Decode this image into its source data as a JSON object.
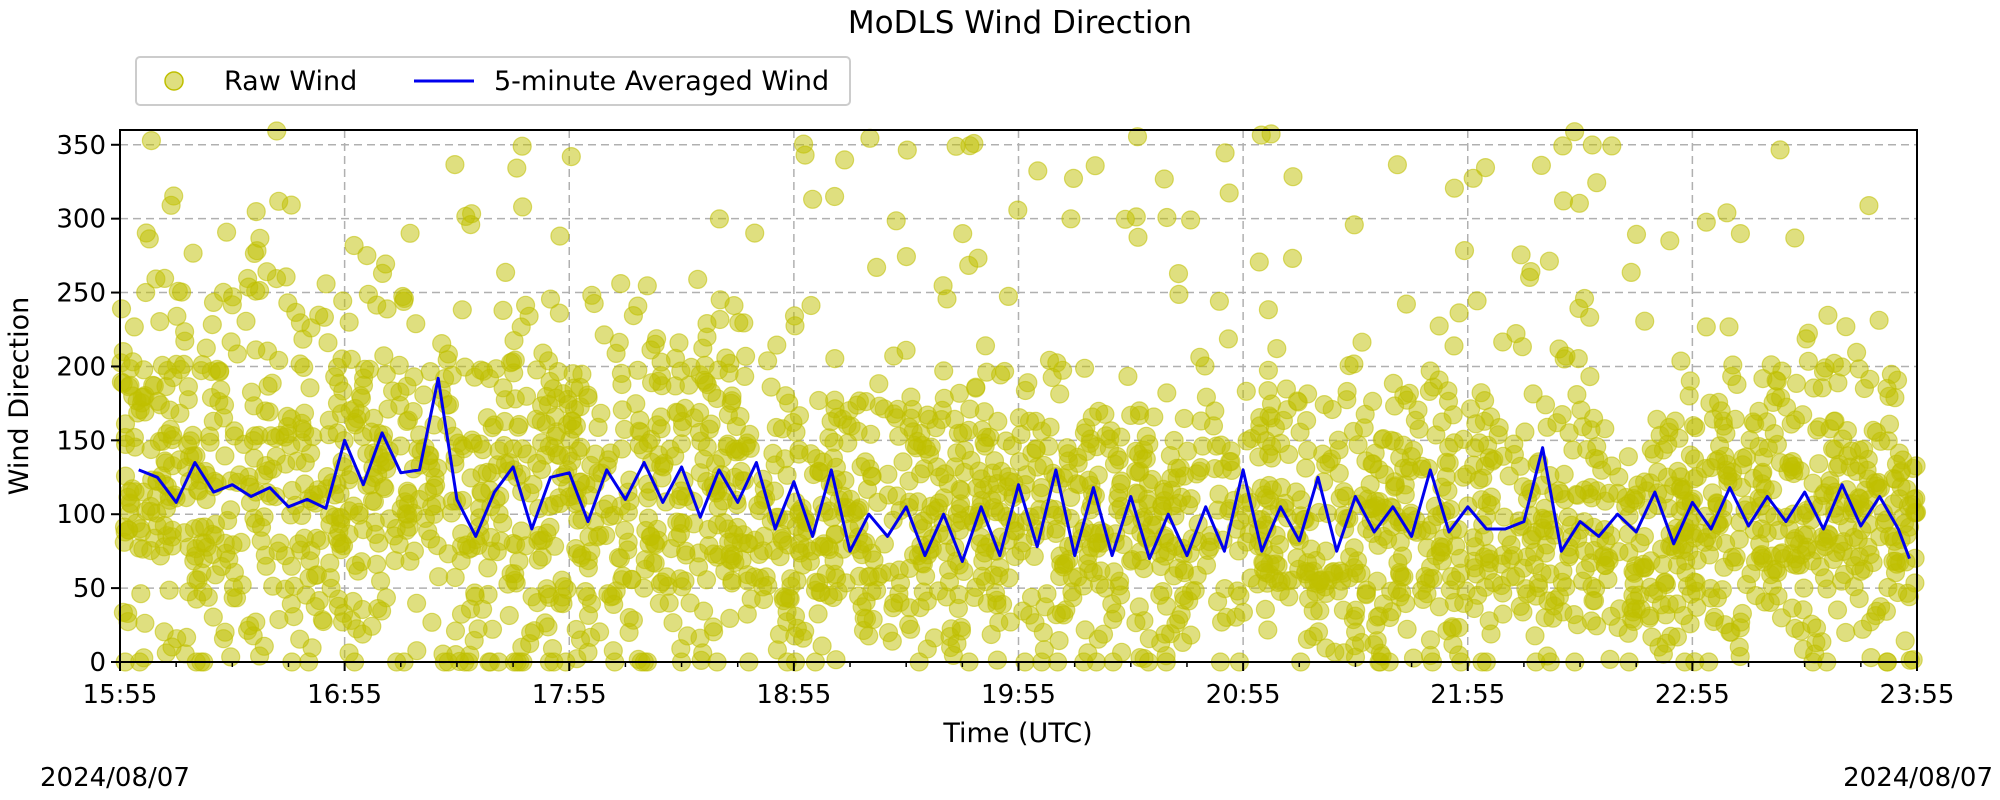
{
  "chart_data": {
    "type": "scatter",
    "title": "MoDLS Wind Direction",
    "xlabel": "Time (UTC)",
    "ylabel": "Wind Direction",
    "ylim": [
      0,
      360
    ],
    "xlim": [
      "15:55",
      "23:55"
    ],
    "x_ticks": [
      "15:55",
      "16:55",
      "17:55",
      "18:55",
      "19:55",
      "20:55",
      "21:55",
      "22:55",
      "23:55"
    ],
    "y_ticks": [
      0,
      50,
      100,
      150,
      200,
      250,
      300,
      350
    ],
    "grid": true,
    "legend_position": "top-left, above plot",
    "date_left": "2024/08/07",
    "date_right": "2024/08/07",
    "colors": {
      "raw": "#bfbf00",
      "averaged": "#0000ee"
    },
    "series": [
      {
        "name": "Raw Wind",
        "kind": "scatter",
        "clusters": [
          {
            "t": "15:55",
            "center": 140,
            "spread": 80
          },
          {
            "t": "16:20",
            "center": 130,
            "spread": 85
          },
          {
            "t": "16:55",
            "center": 125,
            "spread": 85
          },
          {
            "t": "17:25",
            "center": 120,
            "spread": 90
          },
          {
            "t": "17:55",
            "center": 115,
            "spread": 85
          },
          {
            "t": "18:25",
            "center": 110,
            "spread": 85
          },
          {
            "t": "18:55",
            "center": 95,
            "spread": 60
          },
          {
            "t": "19:25",
            "center": 90,
            "spread": 60
          },
          {
            "t": "19:55",
            "center": 95,
            "spread": 65
          },
          {
            "t": "20:25",
            "center": 90,
            "spread": 60
          },
          {
            "t": "20:55",
            "center": 95,
            "spread": 60
          },
          {
            "t": "21:25",
            "center": 95,
            "spread": 60
          },
          {
            "t": "21:55",
            "center": 95,
            "spread": 60
          },
          {
            "t": "22:25",
            "center": 95,
            "spread": 60
          },
          {
            "t": "22:55",
            "center": 95,
            "spread": 60
          },
          {
            "t": "23:25",
            "center": 100,
            "spread": 60
          },
          {
            "t": "23:55",
            "center": 100,
            "spread": 60
          }
        ]
      },
      {
        "name": "5-minute Averaged Wind",
        "kind": "line",
        "x": [
          "16:00",
          "16:05",
          "16:10",
          "16:15",
          "16:20",
          "16:25",
          "16:30",
          "16:35",
          "16:40",
          "16:45",
          "16:50",
          "16:55",
          "17:00",
          "17:05",
          "17:10",
          "17:15",
          "17:20",
          "17:25",
          "17:30",
          "17:35",
          "17:40",
          "17:45",
          "17:50",
          "17:55",
          "18:00",
          "18:05",
          "18:10",
          "18:15",
          "18:20",
          "18:25",
          "18:30",
          "18:35",
          "18:40",
          "18:45",
          "18:50",
          "18:55",
          "19:00",
          "19:05",
          "19:10",
          "19:15",
          "19:20",
          "19:25",
          "19:30",
          "19:35",
          "19:40",
          "19:45",
          "19:50",
          "19:55",
          "20:00",
          "20:05",
          "20:10",
          "20:15",
          "20:20",
          "20:25",
          "20:30",
          "20:35",
          "20:40",
          "20:45",
          "20:50",
          "20:55",
          "21:00",
          "21:05",
          "21:10",
          "21:15",
          "21:20",
          "21:25",
          "21:30",
          "21:35",
          "21:40",
          "21:45",
          "21:50",
          "21:55",
          "22:00",
          "22:05",
          "22:10",
          "22:15",
          "22:20",
          "22:25",
          "22:30",
          "22:35",
          "22:40",
          "22:45",
          "22:50",
          "22:55",
          "23:00",
          "23:05",
          "23:10",
          "23:15",
          "23:20",
          "23:25",
          "23:30",
          "23:35",
          "23:40",
          "23:45",
          "23:50",
          "23:53"
        ],
        "values": [
          130,
          125,
          108,
          135,
          115,
          120,
          112,
          118,
          105,
          110,
          104,
          150,
          120,
          155,
          128,
          130,
          192,
          110,
          85,
          115,
          132,
          90,
          125,
          128,
          95,
          130,
          110,
          135,
          108,
          132,
          98,
          130,
          108,
          135,
          90,
          122,
          85,
          130,
          75,
          100,
          85,
          105,
          72,
          100,
          68,
          105,
          72,
          120,
          78,
          130,
          72,
          118,
          72,
          112,
          70,
          100,
          72,
          105,
          75,
          130,
          75,
          105,
          82,
          125,
          75,
          112,
          88,
          105,
          85,
          130,
          88,
          105,
          90,
          90,
          95,
          145,
          75,
          95,
          85,
          100,
          88,
          115,
          80,
          108,
          90,
          118,
          92,
          112,
          95,
          115,
          90,
          120,
          92,
          112,
          90,
          70
        ]
      }
    ]
  }
}
